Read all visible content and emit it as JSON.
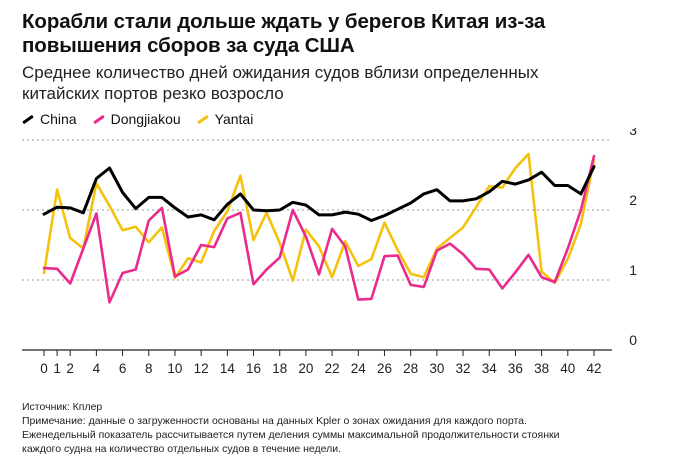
{
  "title_line1": "Корабли стали дольше ждать у берегов Китая из-за",
  "title_line2": "повышения сборов за суда США",
  "subtitle_line1": "Среднее количество дней ожидания судов вблизи определенных",
  "subtitle_line2": "китайских портов резко возросло",
  "source": "Источник: Кплер",
  "note_line1": "Примечание: данные о загруженности основаны на данных Kpler о зонах ожидания для каждого порта.",
  "note_line2": "Еженедельный показатель рассчитывается путем деления суммы максимальной продолжительности стоянки",
  "note_line3": "каждого судна на количество отдельных судов в течение недели.",
  "chart_data": {
    "type": "line",
    "xlim": [
      0,
      42
    ],
    "ylim": [
      0,
      3
    ],
    "x_ticks": [
      0,
      1,
      2,
      4,
      6,
      8,
      10,
      12,
      14,
      16,
      18,
      20,
      22,
      24,
      26,
      28,
      30,
      32,
      34,
      36,
      38,
      40,
      42
    ],
    "y_ticks": [
      0,
      1,
      2,
      3
    ],
    "grid": "horizontal",
    "legend": "top-left",
    "x": [
      0,
      1,
      2,
      3,
      4,
      5,
      6,
      7,
      8,
      9,
      10,
      11,
      12,
      13,
      14,
      15,
      16,
      17,
      18,
      19,
      20,
      21,
      22,
      23,
      24,
      25,
      26,
      27,
      28,
      29,
      30,
      31,
      32,
      33,
      34,
      35,
      36,
      37,
      38,
      39,
      40,
      41,
      42
    ],
    "series": [
      {
        "name": "China",
        "color": "#000000",
        "values": [
          1.94,
          2.04,
          2.03,
          1.96,
          2.45,
          2.6,
          2.25,
          2.02,
          2.18,
          2.18,
          2.03,
          1.9,
          1.93,
          1.86,
          2.08,
          2.23,
          2.0,
          1.99,
          2.0,
          2.11,
          2.07,
          1.93,
          1.93,
          1.97,
          1.94,
          1.85,
          1.92,
          2.01,
          2.1,
          2.23,
          2.29,
          2.13,
          2.13,
          2.16,
          2.26,
          2.41,
          2.37,
          2.43,
          2.54,
          2.35,
          2.35,
          2.23,
          2.62
        ]
      },
      {
        "name": "Dongjiakou",
        "color": "#ea2a8c",
        "values": [
          1.17,
          1.16,
          0.95,
          1.45,
          1.95,
          0.68,
          1.1,
          1.15,
          1.85,
          2.03,
          1.05,
          1.15,
          1.5,
          1.47,
          1.88,
          1.96,
          0.94,
          1.15,
          1.32,
          2.0,
          1.62,
          1.08,
          1.73,
          1.48,
          0.72,
          0.73,
          1.34,
          1.35,
          0.93,
          0.9,
          1.42,
          1.52,
          1.37,
          1.16,
          1.15,
          0.88,
          1.11,
          1.36,
          1.04,
          0.97,
          1.45,
          2.0,
          2.77
        ]
      },
      {
        "name": "Yantai",
        "color": "#f4c20d",
        "values": [
          1.1,
          2.29,
          1.6,
          1.45,
          2.38,
          2.06,
          1.71,
          1.76,
          1.54,
          1.75,
          1.03,
          1.31,
          1.25,
          1.7,
          1.98,
          2.49,
          1.57,
          1.96,
          1.53,
          0.99,
          1.72,
          1.48,
          1.04,
          1.55,
          1.2,
          1.3,
          1.82,
          1.43,
          1.09,
          1.04,
          1.45,
          1.6,
          1.75,
          2.04,
          2.34,
          2.32,
          2.6,
          2.8,
          1.12,
          0.96,
          1.3,
          1.8,
          2.72
        ]
      }
    ]
  }
}
